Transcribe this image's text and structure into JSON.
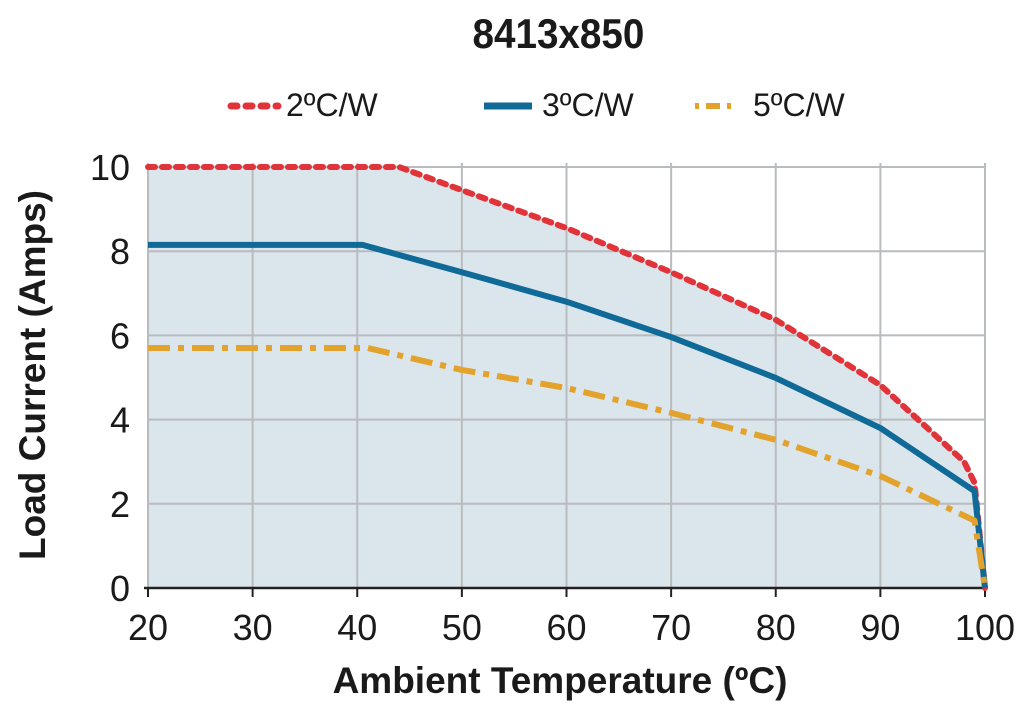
{
  "chart_data": {
    "type": "line",
    "title": "8413x850",
    "xlabel": "Ambient Temperature (ºC)",
    "ylabel": "Load Current (Amps)",
    "xlim": [
      20,
      100
    ],
    "ylim": [
      0,
      10
    ],
    "xticks": [
      20,
      30,
      40,
      50,
      60,
      70,
      80,
      90,
      100
    ],
    "yticks": [
      0,
      2,
      4,
      6,
      8,
      10
    ],
    "grid": true,
    "legend_position": "top",
    "shaded_region": "under 2ºC/W curve",
    "shade_color": "#dbe5ec",
    "series": [
      {
        "name": "2ºC/W",
        "color": "#e0343a",
        "style": "dotted",
        "x": [
          20,
          44,
          50,
          60,
          70,
          80,
          90,
          98,
          99,
          100
        ],
        "y": [
          10,
          10,
          9.45,
          8.55,
          7.5,
          6.37,
          4.82,
          3.0,
          2.5,
          0
        ]
      },
      {
        "name": "3ºC/W",
        "color": "#0f6a98",
        "style": "solid",
        "x": [
          20,
          40.5,
          50,
          60,
          70,
          80,
          90,
          99,
          100
        ],
        "y": [
          8.15,
          8.15,
          7.5,
          6.8,
          5.96,
          4.99,
          3.8,
          2.3,
          0
        ]
      },
      {
        "name": "5ºC/W",
        "color": "#e3a22b",
        "style": "dashdot",
        "x": [
          20,
          41,
          50,
          60,
          70,
          80,
          90,
          99,
          100
        ],
        "y": [
          5.7,
          5.7,
          5.18,
          4.75,
          4.16,
          3.52,
          2.66,
          1.6,
          0
        ]
      }
    ]
  }
}
